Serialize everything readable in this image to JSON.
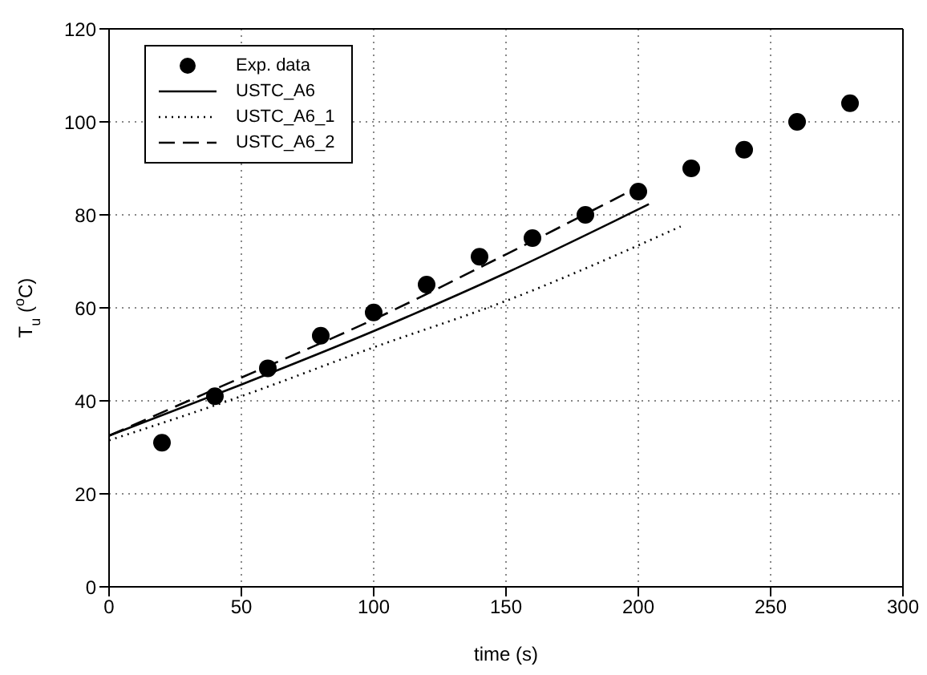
{
  "chart_data": {
    "type": "line",
    "xlabel": "time (s)",
    "ylabel": "T$_{u}$ ($^{o}$C)",
    "xlim": [
      0,
      300
    ],
    "ylim": [
      0,
      120
    ],
    "xticks": [
      0,
      50,
      100,
      150,
      200,
      250,
      300
    ],
    "yticks": [
      0,
      20,
      40,
      60,
      80,
      100,
      120
    ],
    "grid": true,
    "legend": "top left",
    "series": [
      {
        "name": "Exp. data",
        "type": "scatter",
        "marker": "circle",
        "color": "#000000",
        "x": [
          20,
          40,
          60,
          80,
          100,
          120,
          140,
          160,
          180,
          200,
          220,
          240,
          260,
          280
        ],
        "values": [
          31,
          41,
          47,
          54,
          59,
          65,
          71,
          75,
          80,
          85,
          90,
          94,
          100,
          104
        ]
      },
      {
        "name": "USTC_A6",
        "line_style": "solid",
        "color": "#000000",
        "x": [
          0,
          50,
          100,
          150,
          204
        ],
        "values": [
          32.5,
          43.5,
          55,
          67.5,
          82.3
        ]
      },
      {
        "name": "USTC_A6_1",
        "line_style": "dotted",
        "color": "#000000",
        "x": [
          0,
          50,
          100,
          150,
          216
        ],
        "values": [
          31.5,
          41,
          51.5,
          61.5,
          77.5
        ]
      },
      {
        "name": "USTC_A6_2",
        "line_style": "dashed",
        "color": "#000000",
        "x": [
          0,
          50,
          100,
          150,
          200
        ],
        "values": [
          32.5,
          45,
          57.5,
          71.5,
          86
        ]
      }
    ]
  }
}
